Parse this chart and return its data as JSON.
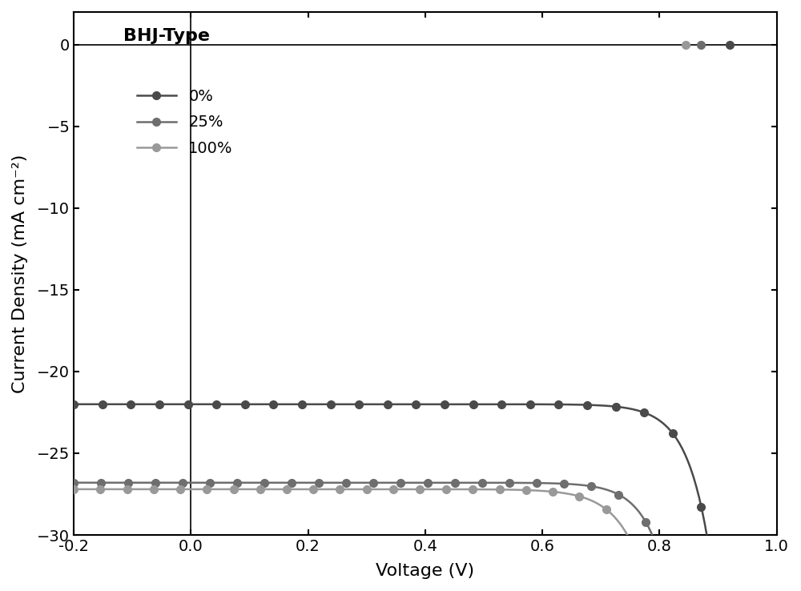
{
  "title": "BHJ-Type",
  "xlabel": "Voltage (V)",
  "ylabel": "Current Density (mA cm⁻²)",
  "xlim": [
    -0.2,
    1.0
  ],
  "ylim": [
    -30,
    2
  ],
  "xticks": [
    -0.2,
    0.0,
    0.2,
    0.4,
    0.6,
    0.8,
    1.0
  ],
  "yticks": [
    0,
    -5,
    -10,
    -15,
    -20,
    -25,
    -30
  ],
  "series": [
    {
      "label": "0%",
      "color": "#4a4a4a",
      "Voc": 0.92,
      "Jsc": -22.0,
      "n": 1.5
    },
    {
      "label": "25%",
      "color": "#6e6e6e",
      "Voc": 0.87,
      "Jsc": -26.8,
      "n": 1.5
    },
    {
      "label": "100%",
      "color": "#999999",
      "Voc": 0.845,
      "Jsc": -27.2,
      "n": 1.7
    }
  ],
  "background_color": "#ffffff",
  "marker_size": 7,
  "line_width": 1.8
}
